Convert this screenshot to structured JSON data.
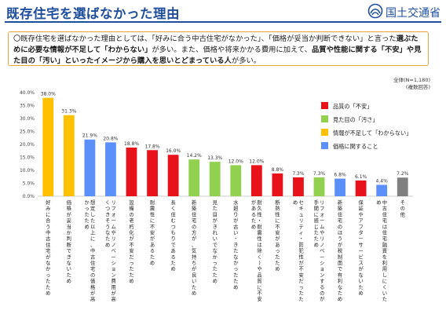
{
  "header": {
    "title": "既存住宅を選ばなかった理由",
    "logo_text": "国土交通省"
  },
  "summary": [
    {
      "text": "〇既存住宅を選ばなかった理由としては、「好みに合う中古住宅がなかった」、「価格が妥当か判断できない」と言った",
      "bold": false
    },
    {
      "text": "選ぶために必要な情報が不足して「わからない」",
      "bold": true
    },
    {
      "text": "が多い。また、価格や将来かかる費用に加えて、",
      "bold": false
    },
    {
      "text": "品質や性能に関する「不安」や見た目の「汚い」といったイメージから購入を思いとどまっている人",
      "bold": true
    },
    {
      "text": "が多い。",
      "bold": false
    }
  ],
  "meta": {
    "sample": "全体(N=1,180)",
    "note": "(複数回答)"
  },
  "colors": {
    "quality": "#e8121b",
    "appearance": "#92d050",
    "info": "#ffc000",
    "price": "#5b8ff9",
    "other": "#808080"
  },
  "chart_data": {
    "type": "bar",
    "ylim": [
      0,
      40
    ],
    "y_ticks": [
      "0.0%",
      "5.0%",
      "10.0%",
      "15.0%",
      "20.0%",
      "25.0%",
      "30.0%",
      "35.0%",
      "40.0%"
    ],
    "legend": [
      {
        "label": "品質の「不安」",
        "group": "quality"
      },
      {
        "label": "見た目の「汚さ」",
        "group": "appearance"
      },
      {
        "label": "情報が不足して「わからない」",
        "group": "info"
      },
      {
        "label": "価格に関すること",
        "group": "price"
      }
    ],
    "categories": [
      {
        "label": "好みに合う中古住宅がなかったため",
        "value": 38.0,
        "value_label": "38.0%",
        "group": "info"
      },
      {
        "label": "価格が妥当か判断できないため",
        "value": 31.3,
        "value_label": "31.3%",
        "group": "info"
      },
      {
        "label": "想定した以上に、中古住宅の価格が高かったため",
        "value": 21.9,
        "value_label": "21.9%",
        "group": "price"
      },
      {
        "label": "リフォームやリノベーション費用が高くつきそうなため",
        "value": 20.8,
        "value_label": "20.8%",
        "group": "price"
      },
      {
        "label": "設備の老朽化が不安だったため",
        "value": 18.8,
        "value_label": "18.8%",
        "group": "quality"
      },
      {
        "label": "耐震性に不安があるため",
        "value": 17.8,
        "value_label": "17.8%",
        "group": "quality"
      },
      {
        "label": "長く住むつもりであるため",
        "value": 16.0,
        "value_label": "16.0%",
        "group": "quality"
      },
      {
        "label": "新築住宅の方が、気持ちが良いため",
        "value": 14.2,
        "value_label": "14.2%",
        "group": "appearance"
      },
      {
        "label": "見た目がきれいでなかったため",
        "value": 13.3,
        "value_label": "13.3%",
        "group": "appearance"
      },
      {
        "label": "水廻りが古い・きたなかったため",
        "value": 12.0,
        "value_label": "12.0%",
        "group": "appearance"
      },
      {
        "label": "耐久性・耐震性は除く)や品質に不安があるため",
        "value": 12.0,
        "value_label": "12.0%",
        "group": "quality"
      },
      {
        "label": "断熱性に不安があったため",
        "value": 8.8,
        "value_label": "8.8%",
        "group": "quality"
      },
      {
        "label": "セキュリティ・防犯性が不安だったため",
        "value": 7.3,
        "value_label": "7.3%",
        "group": "quality"
      },
      {
        "label": "リフォームやリノベーションするのが手間に感じたため",
        "value": 7.3,
        "value_label": "7.3%",
        "group": "appearance"
      },
      {
        "label": "新築住宅のほうが税制面で有利なため",
        "value": 6.8,
        "value_label": "6.8%",
        "group": "price"
      },
      {
        "label": "保証やアフターサービスがないため",
        "value": 6.1,
        "value_label": "6.1%",
        "group": "quality"
      },
      {
        "label": "中古住宅は住宅融資を利用しにくいため",
        "value": 4.4,
        "value_label": "4.4%",
        "group": "price"
      },
      {
        "label": "その他",
        "value": 7.2,
        "value_label": "7.2%",
        "group": "other"
      }
    ]
  }
}
